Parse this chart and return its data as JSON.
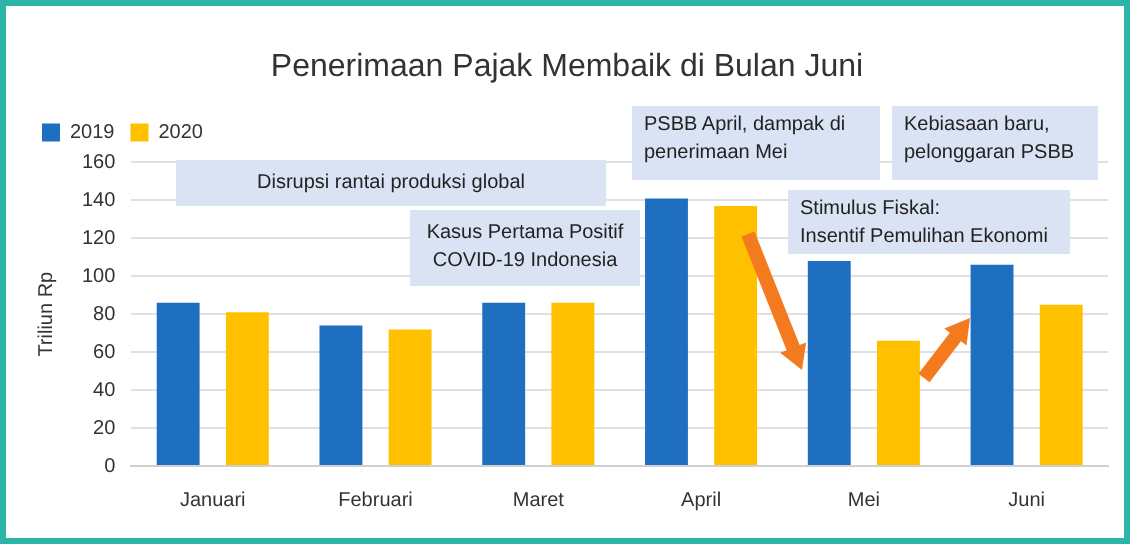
{
  "chart_data": {
    "type": "bar",
    "title": "Penerimaan Pajak Membaik di Bulan Juni",
    "ylabel": "Triliun Rp",
    "categories": [
      "Januari",
      "Februari",
      "Maret",
      "April",
      "Mei",
      "Juni"
    ],
    "series": [
      {
        "name": "2019",
        "color": "#1f6fc0",
        "values": [
          86,
          74,
          86,
          141,
          108,
          106
        ]
      },
      {
        "name": "2020",
        "color": "#ffc000",
        "values": [
          81,
          72,
          86,
          137,
          66,
          85
        ]
      }
    ],
    "ylim": [
      0,
      160
    ],
    "yticks": [
      0,
      20,
      40,
      60,
      80,
      100,
      120,
      140,
      160
    ],
    "grid": "y",
    "legend": "top left",
    "annotations": [
      "Disrupsi rantai produksi global",
      "Kasus Pertama Positif\nCOVID-19 Indonesia",
      "PSBB April, dampak di\npenerimaan Mei",
      "Kebiasaan baru,\npelonggaran PSBB",
      "Stimulus Fiskal:\nInsentif Pemulihan Ekonomi"
    ]
  }
}
